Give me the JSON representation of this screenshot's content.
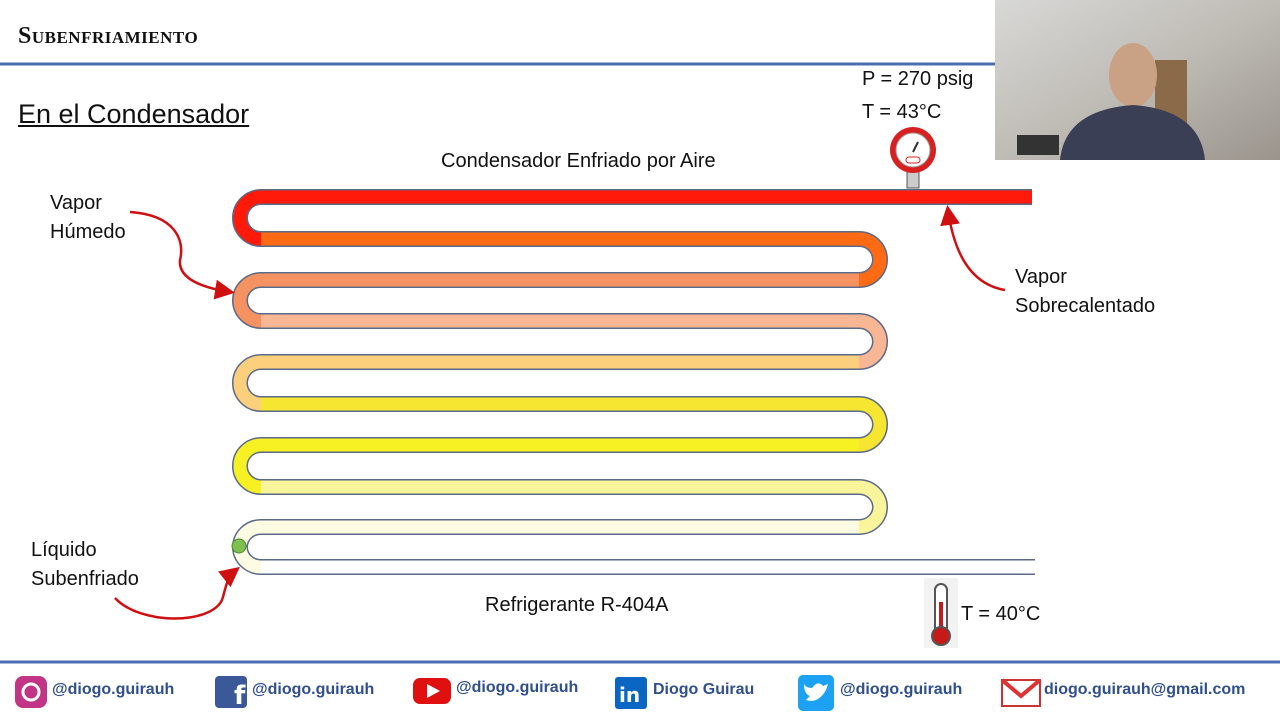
{
  "header": {
    "title": "Subenfriamiento"
  },
  "subtitle": "En el Condensador",
  "diagram": {
    "pressure": "P = 270 psig",
    "temperature_top": "T = 43°C",
    "title": "Condensador Enfriado por Aire",
    "wet_vapor": [
      "Vapor",
      "Húmedo"
    ],
    "superheated_vapor": [
      "Vapor",
      "Sobrecalentado"
    ],
    "subcooled_liquid": [
      "Líquido",
      "Subenfriado"
    ],
    "refrigerant": "Refrigerante R-404A",
    "temperature_bottom": "T = 40°C"
  },
  "footer": {
    "social": [
      "@diogo.guirauh",
      "@diogo.guirauh",
      "@diogo.guirauh",
      "Diogo Guirau",
      "@diogo.guirauh",
      "diogo.guirauh@gmail.com"
    ]
  }
}
